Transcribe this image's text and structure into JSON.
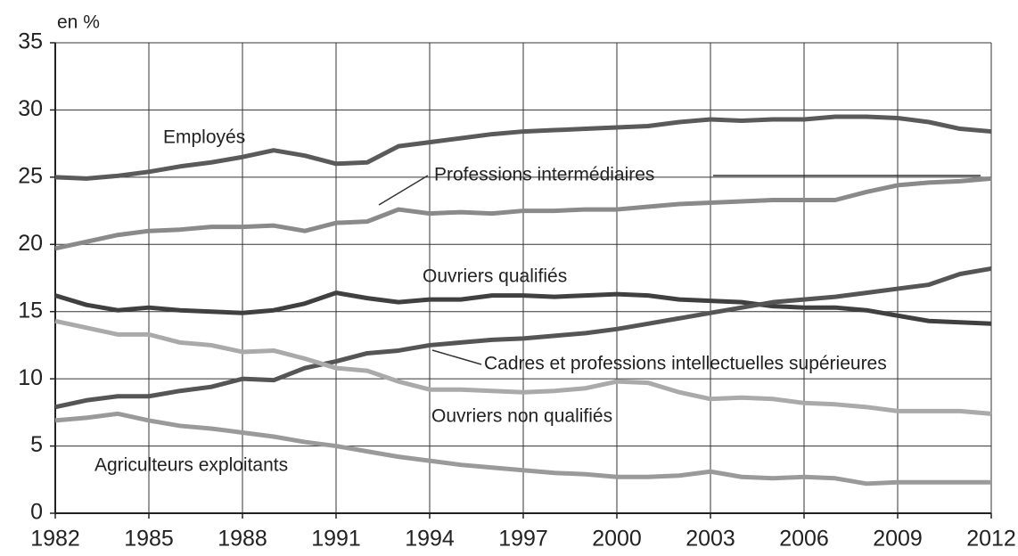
{
  "chart_data": {
    "type": "line",
    "y_label": "en %",
    "x": [
      1982,
      1983,
      1984,
      1985,
      1986,
      1987,
      1988,
      1989,
      1990,
      1991,
      1992,
      1993,
      1994,
      1995,
      1996,
      1997,
      1998,
      1999,
      2000,
      2001,
      2002,
      2003,
      2004,
      2005,
      2006,
      2007,
      2008,
      2009,
      2010,
      2011,
      2012
    ],
    "series": [
      {
        "name": "Employés",
        "color": "#5a5a5a",
        "values": [
          25,
          24.9,
          25.1,
          25.4,
          25.8,
          26.1,
          26.5,
          27,
          26.6,
          26,
          26.1,
          27.3,
          27.6,
          27.9,
          28.2,
          28.4,
          28.5,
          28.6,
          28.7,
          28.8,
          29.1,
          29.3,
          29.2,
          29.3,
          29.3,
          29.5,
          29.5,
          29.4,
          29.1,
          28.6,
          28.4
        ]
      },
      {
        "name": "Professions intermédiaires",
        "color": "#8a8a8a",
        "values": [
          19.7,
          20.2,
          20.7,
          21,
          21.1,
          21.3,
          21.3,
          21.4,
          21,
          21.6,
          21.7,
          22.6,
          22.3,
          22.4,
          22.3,
          22.5,
          22.5,
          22.6,
          22.6,
          22.8,
          23,
          23.1,
          23.2,
          23.3,
          23.3,
          23.3,
          23.9,
          24.4,
          24.6,
          24.7,
          24.9
        ]
      },
      {
        "name": "Ouvriers qualifiés",
        "color": "#404040",
        "values": [
          16.2,
          15.5,
          15.1,
          15.3,
          15.1,
          15,
          14.9,
          15.1,
          15.6,
          16.4,
          16,
          15.7,
          15.9,
          15.9,
          16.2,
          16.2,
          16.1,
          16.2,
          16.3,
          16.2,
          15.9,
          15.8,
          15.7,
          15.4,
          15.3,
          15.3,
          15.1,
          14.7,
          14.3,
          14.2,
          14.1
        ]
      },
      {
        "name": "Cadres et professions intellectuelles supérieures",
        "color": "#555555",
        "values": [
          7.9,
          8.4,
          8.7,
          8.7,
          9.1,
          9.4,
          10,
          9.9,
          10.8,
          11.3,
          11.9,
          12.1,
          12.5,
          12.7,
          12.9,
          13,
          13.2,
          13.4,
          13.7,
          14.1,
          14.5,
          14.9,
          15.3,
          15.7,
          15.9,
          16.1,
          16.4,
          16.7,
          17,
          17.8,
          18.2
        ]
      },
      {
        "name": "Ouvriers non qualifiés",
        "color": "#aaaaaa",
        "values": [
          14.3,
          13.8,
          13.3,
          13.3,
          12.7,
          12.5,
          12,
          12.1,
          11.5,
          10.8,
          10.6,
          9.8,
          9.2,
          9.2,
          9.1,
          9,
          9.1,
          9.3,
          9.8,
          9.7,
          9,
          8.5,
          8.6,
          8.5,
          8.2,
          8.1,
          7.9,
          7.6,
          7.6,
          7.6,
          7.4
        ]
      },
      {
        "name": "Agriculteurs exploitants",
        "color": "#9a9a9a",
        "values": [
          6.9,
          7.1,
          7.4,
          6.9,
          6.5,
          6.3,
          6,
          5.7,
          5.3,
          5,
          4.6,
          4.2,
          3.9,
          3.6,
          3.4,
          3.2,
          3,
          2.9,
          2.7,
          2.7,
          2.8,
          3.1,
          2.7,
          2.6,
          2.7,
          2.6,
          2.2,
          2.3,
          2.3,
          2.3,
          2.3
        ]
      }
    ],
    "xlim": [
      1982,
      2012
    ],
    "xticks": [
      1982,
      1985,
      1988,
      1991,
      1994,
      1997,
      2000,
      2003,
      2006,
      2009,
      2012
    ],
    "ylim": [
      0,
      35
    ],
    "yticks": [
      0,
      5,
      10,
      15,
      20,
      25,
      30,
      35
    ],
    "grid": true
  }
}
